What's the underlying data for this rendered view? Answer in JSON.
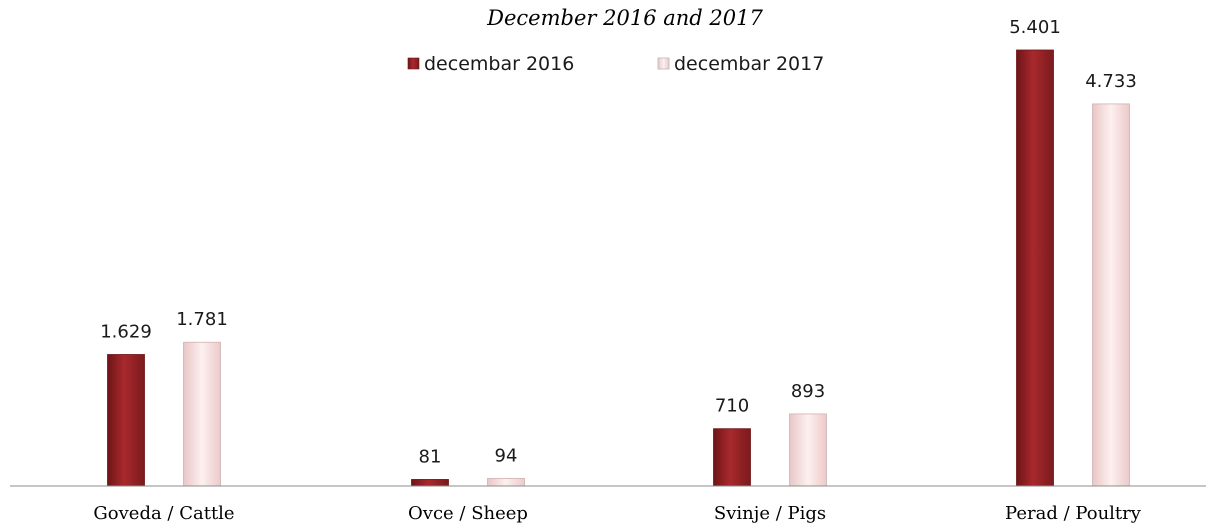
{
  "chart_data": {
    "type": "bar",
    "title": "",
    "subtitle": "December 2016 and 2017",
    "categories": [
      "Goveda / Cattle",
      "Ovce / Sheep",
      "Svinje / Pigs",
      "Perad / Poultry"
    ],
    "series": [
      {
        "name": "decembar 2016",
        "values": [
          1629,
          81,
          710,
          5401
        ],
        "labels": [
          "1.629",
          "81",
          "710",
          "5.401"
        ],
        "color": "#a0272a"
      },
      {
        "name": "decembar 2017",
        "values": [
          1781,
          94,
          893,
          4733
        ],
        "labels": [
          "1.781",
          "94",
          "893",
          "4.733"
        ],
        "color": "#fbe3e3"
      }
    ],
    "ylim": [
      0,
      5401
    ],
    "grid": false,
    "legend_position": "top",
    "xlabel": "",
    "ylabel": ""
  }
}
